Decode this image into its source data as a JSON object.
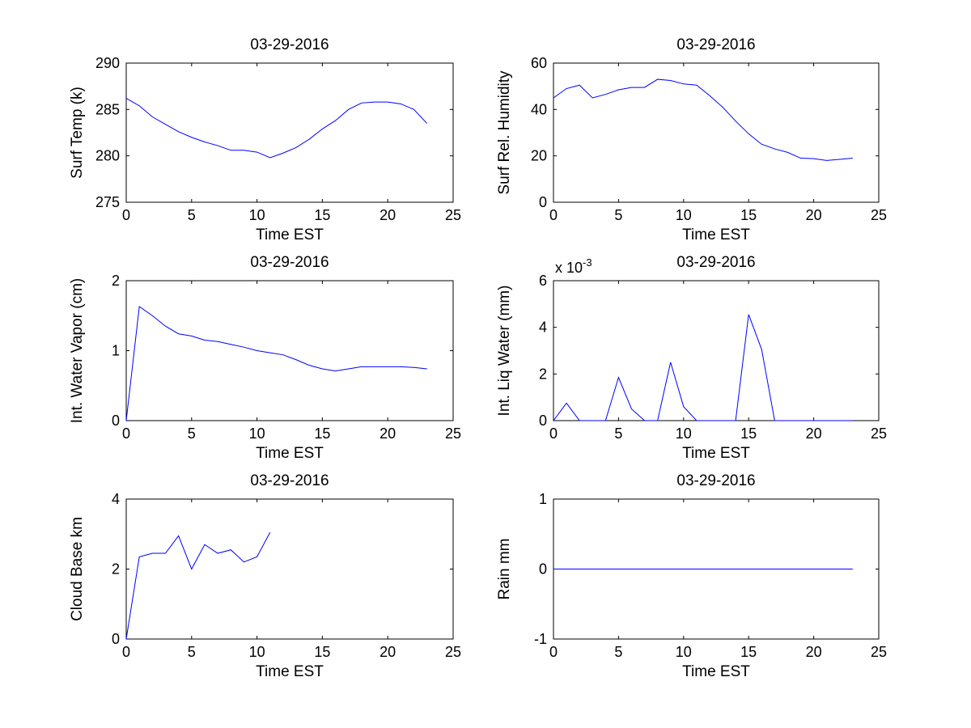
{
  "figure": {
    "background": "#ffffff",
    "line_color": "#0000ff",
    "axis_color": "#000000"
  },
  "chart_data": [
    {
      "type": "line",
      "title": "03-29-2016",
      "xlabel": "Time EST",
      "ylabel": "Surf Temp (k)",
      "exponent": "",
      "xlim": [
        0,
        25
      ],
      "ylim": [
        275,
        290
      ],
      "xticks": [
        0,
        5,
        10,
        15,
        20,
        25
      ],
      "yticks": [
        275,
        280,
        285,
        290
      ],
      "grid": false,
      "series": [
        {
          "x": [
            0,
            1,
            2,
            3,
            4,
            5,
            6,
            7,
            8,
            9,
            10,
            11,
            12,
            13,
            14,
            15,
            16,
            17,
            18,
            19,
            20,
            21,
            22,
            23
          ],
          "y": [
            286.2,
            285.4,
            284.2,
            283.4,
            282.6,
            282.0,
            281.5,
            281.1,
            280.6,
            280.6,
            280.4,
            279.8,
            280.3,
            280.9,
            281.8,
            282.9,
            283.8,
            285.0,
            285.7,
            285.8,
            285.8,
            285.6,
            285.0,
            283.5
          ]
        }
      ]
    },
    {
      "type": "line",
      "title": "03-29-2016",
      "xlabel": "Time EST",
      "ylabel": "Surf Rel. Humidity",
      "exponent": "",
      "xlim": [
        0,
        25
      ],
      "ylim": [
        0,
        60
      ],
      "xticks": [
        0,
        5,
        10,
        15,
        20,
        25
      ],
      "yticks": [
        0,
        20,
        40,
        60
      ],
      "grid": false,
      "series": [
        {
          "x": [
            0,
            1,
            2,
            3,
            4,
            5,
            6,
            7,
            8,
            9,
            10,
            11,
            12,
            13,
            14,
            15,
            16,
            17,
            18,
            19,
            20,
            21,
            22,
            23
          ],
          "y": [
            45,
            49,
            50.5,
            45,
            46.5,
            48.5,
            49.5,
            49.5,
            53,
            52.5,
            51,
            50.5,
            46,
            41,
            35,
            29.5,
            25,
            23,
            21.5,
            19,
            18.8,
            18,
            18.5,
            19
          ]
        }
      ]
    },
    {
      "type": "line",
      "title": "03-29-2016",
      "xlabel": "Time EST",
      "ylabel": "Int. Water Vapor (cm)",
      "exponent": "",
      "xlim": [
        0,
        25
      ],
      "ylim": [
        0,
        2
      ],
      "xticks": [
        0,
        5,
        10,
        15,
        20,
        25
      ],
      "yticks": [
        0,
        1,
        2
      ],
      "grid": false,
      "series": [
        {
          "x": [
            0,
            1,
            2,
            3,
            4,
            5,
            6,
            7,
            8,
            9,
            10,
            11,
            12,
            13,
            14,
            15,
            16,
            17,
            18,
            19,
            20,
            21,
            22,
            23
          ],
          "y": [
            0,
            1.63,
            1.5,
            1.35,
            1.24,
            1.21,
            1.15,
            1.13,
            1.09,
            1.05,
            1.0,
            0.97,
            0.94,
            0.87,
            0.79,
            0.74,
            0.71,
            0.74,
            0.77,
            0.77,
            0.77,
            0.77,
            0.76,
            0.74
          ]
        }
      ]
    },
    {
      "type": "line",
      "title": "03-29-2016",
      "xlabel": "Time EST",
      "ylabel": "Int. Liq Water (mm)",
      "exponent": "x 10-3",
      "exponent_base": "x 10",
      "exponent_power": "-3",
      "xlim": [
        0,
        25
      ],
      "ylim": [
        0,
        6
      ],
      "xticks": [
        0,
        5,
        10,
        15,
        20,
        25
      ],
      "yticks": [
        0,
        2,
        4,
        6
      ],
      "grid": false,
      "series": [
        {
          "x": [
            0,
            1,
            2,
            3,
            4,
            5,
            6,
            7,
            8,
            9,
            10,
            11,
            12,
            13,
            14,
            15,
            16,
            17,
            18,
            19,
            20,
            21,
            22,
            23
          ],
          "y": [
            0,
            0.75,
            0,
            0,
            0,
            1.85,
            0.5,
            0,
            0,
            2.5,
            0.6,
            0,
            0,
            0,
            0,
            4.55,
            3.05,
            0,
            0,
            0,
            0,
            0,
            0,
            0
          ]
        }
      ]
    },
    {
      "type": "line",
      "title": "03-29-2016",
      "xlabel": "Time EST",
      "ylabel": "Cloud Base km",
      "exponent": "",
      "xlim": [
        0,
        25
      ],
      "ylim": [
        0,
        4
      ],
      "xticks": [
        0,
        5,
        10,
        15,
        20,
        25
      ],
      "yticks": [
        0,
        2,
        4
      ],
      "grid": false,
      "series": [
        {
          "x": [
            0,
            1,
            2,
            3,
            4,
            5,
            6,
            7,
            8,
            9,
            10,
            11
          ],
          "y": [
            0,
            2.35,
            2.45,
            2.45,
            2.95,
            2.0,
            2.7,
            2.45,
            2.55,
            2.2,
            2.35,
            3.05
          ]
        }
      ]
    },
    {
      "type": "line",
      "title": "03-29-2016",
      "xlabel": "Time EST",
      "ylabel": "Rain mm",
      "exponent": "",
      "xlim": [
        0,
        25
      ],
      "ylim": [
        -1,
        1
      ],
      "xticks": [
        0,
        5,
        10,
        15,
        20,
        25
      ],
      "yticks": [
        -1,
        0,
        1
      ],
      "grid": false,
      "series": [
        {
          "x": [
            0,
            1,
            2,
            3,
            4,
            5,
            6,
            7,
            8,
            9,
            10,
            11,
            12,
            13,
            14,
            15,
            16,
            17,
            18,
            19,
            20,
            21,
            22,
            23
          ],
          "y": [
            0,
            0,
            0,
            0,
            0,
            0,
            0,
            0,
            0,
            0,
            0,
            0,
            0,
            0,
            0,
            0,
            0,
            0,
            0,
            0,
            0,
            0,
            0,
            0
          ]
        }
      ]
    }
  ]
}
